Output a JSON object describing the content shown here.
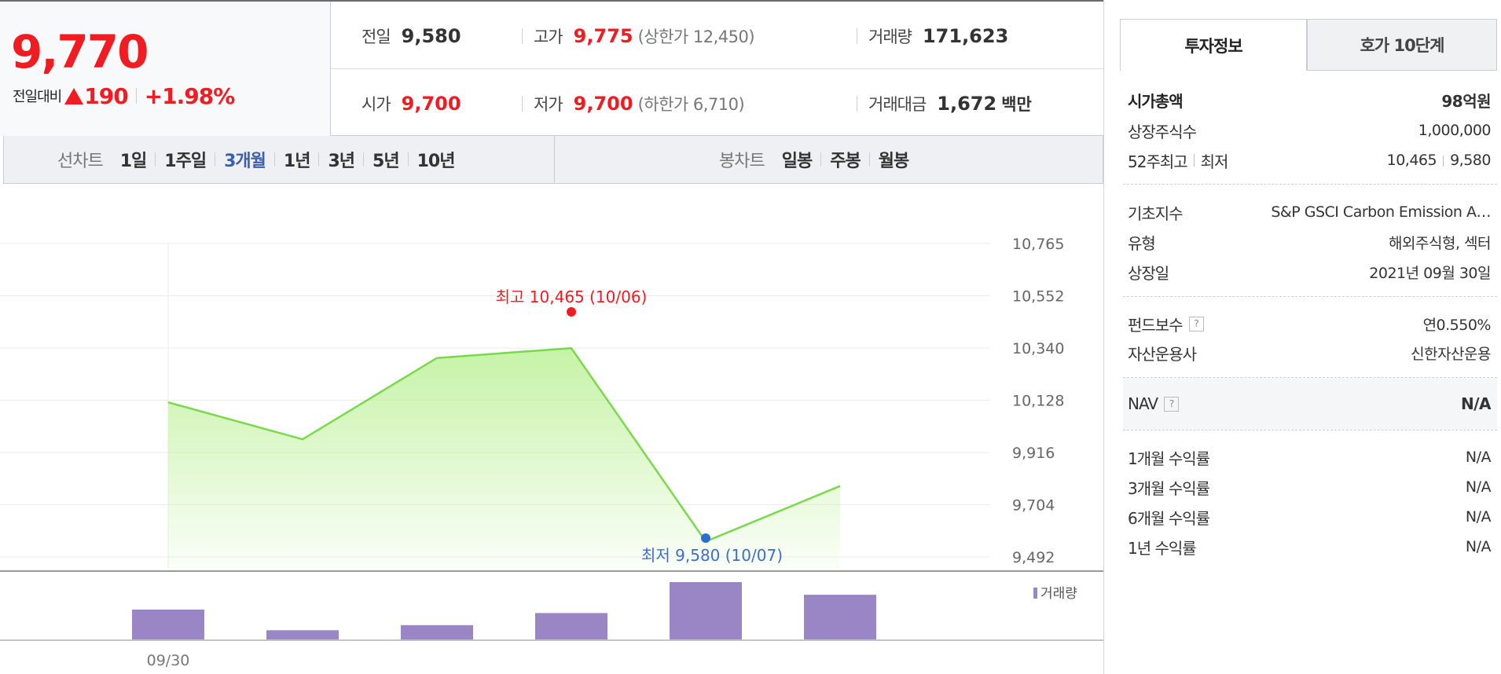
{
  "quote": {
    "current_price": "9,770",
    "change_label": "전일대비",
    "change_value": "190",
    "change_pct": "+1.98%",
    "prev_close": {
      "label": "전일",
      "value": "9,580"
    },
    "high": {
      "label": "고가",
      "value": "9,775",
      "extra": "(상한가 12,450)"
    },
    "volume": {
      "label": "거래량",
      "value": "171,623"
    },
    "open": {
      "label": "시가",
      "value": "9,700"
    },
    "low": {
      "label": "저가",
      "value": "9,700",
      "extra": "(하한가 6,710)"
    },
    "amount": {
      "label": "거래대금",
      "value": "1,672",
      "unit": "백만"
    }
  },
  "period_tabs": {
    "line_title": "선차트",
    "line_items": [
      "1일",
      "1주일",
      "3개월",
      "1년",
      "3년",
      "5년",
      "10년"
    ],
    "active": "3개월",
    "candle_title": "봉차트",
    "candle_items": [
      "일봉",
      "주봉",
      "월봉"
    ]
  },
  "chart_data": {
    "type": "area",
    "y_ticks": [
      "10,765",
      "10,552",
      "10,340",
      "10,128",
      "9,916",
      "9,704",
      "9,492"
    ],
    "ylim": [
      9492,
      10765
    ],
    "x_label_visible": "09/30",
    "values": [
      10120,
      9970,
      10300,
      10340,
      9555,
      9780
    ],
    "max_annotation": "최고 10,465 (10/06)",
    "min_annotation": "최저 9,580 (10/07)",
    "line_color": "#7ad94a",
    "fill_color": "#c6f3a7",
    "volume_legend": "거래량",
    "volume_color": "#9b86c5",
    "volume": [
      0.52,
      0.16,
      0.25,
      0.46,
      1.0,
      0.78
    ]
  },
  "info_panel": {
    "tab_active": "투자정보",
    "tab_other": "호가 10단계",
    "market_cap": {
      "label": "시가총액",
      "value": "98",
      "unit": "억원"
    },
    "shares": {
      "label": "상장주식수",
      "value": "1,000,000"
    },
    "week52": {
      "label_high": "52주최고",
      "label_low": "최저",
      "high": "10,465",
      "low": "9,580"
    },
    "index": {
      "label": "기초지수",
      "value": "S&P GSCI Carbon Emission A…"
    },
    "type": {
      "label": "유형",
      "value": "해외주식형, 섹터"
    },
    "listed": {
      "label": "상장일",
      "value": "2021년 09월 30일"
    },
    "fee": {
      "label": "펀드보수",
      "value": "연0.550%"
    },
    "manager": {
      "label": "자산운용사",
      "value": "신한자산운용"
    },
    "nav": {
      "label": "NAV",
      "value": "N/A"
    },
    "returns": [
      {
        "label": "1개월 수익률",
        "value": "N/A"
      },
      {
        "label": "3개월 수익률",
        "value": "N/A"
      },
      {
        "label": "6개월 수익률",
        "value": "N/A"
      },
      {
        "label": "1년 수익률",
        "value": "N/A"
      }
    ],
    "help_glyph": "?"
  }
}
